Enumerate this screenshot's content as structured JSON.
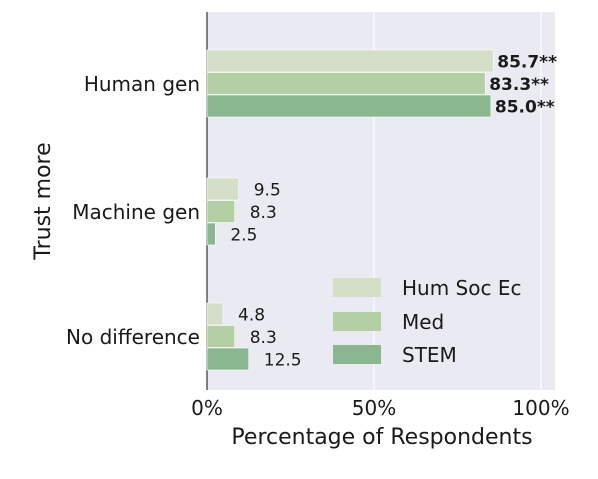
{
  "chart_data": {
    "type": "bar",
    "orientation": "horizontal",
    "title": "",
    "xlabel": "Percentage of Respondents",
    "ylabel": "Trust more",
    "xlim": [
      0,
      100
    ],
    "x_ticks": [
      0,
      50,
      100
    ],
    "x_tick_labels": [
      "0%",
      "50%",
      "100%"
    ],
    "grid": true,
    "legend_position": "bottom-right",
    "categories": [
      "Human gen",
      "Machine gen",
      "No difference"
    ],
    "series": [
      {
        "name": "Hum Soc Ec",
        "color": "#d5dec7",
        "values": [
          85.7,
          9.5,
          4.8
        ],
        "labels": [
          "85.7**",
          "9.5",
          "4.8"
        ],
        "bold": [
          true,
          false,
          false
        ]
      },
      {
        "name": "Med",
        "color": "#b3cfa3",
        "values": [
          83.3,
          8.3,
          8.3
        ],
        "labels": [
          "83.3**",
          "8.3",
          "8.3"
        ],
        "bold": [
          true,
          false,
          false
        ]
      },
      {
        "name": "STEM",
        "color": "#8bb790",
        "values": [
          85.0,
          2.5,
          12.5
        ],
        "labels": [
          "85.0**",
          "2.5",
          "12.5"
        ],
        "bold": [
          true,
          false,
          false
        ]
      }
    ],
    "plot_background": "#eaeaf2"
  }
}
